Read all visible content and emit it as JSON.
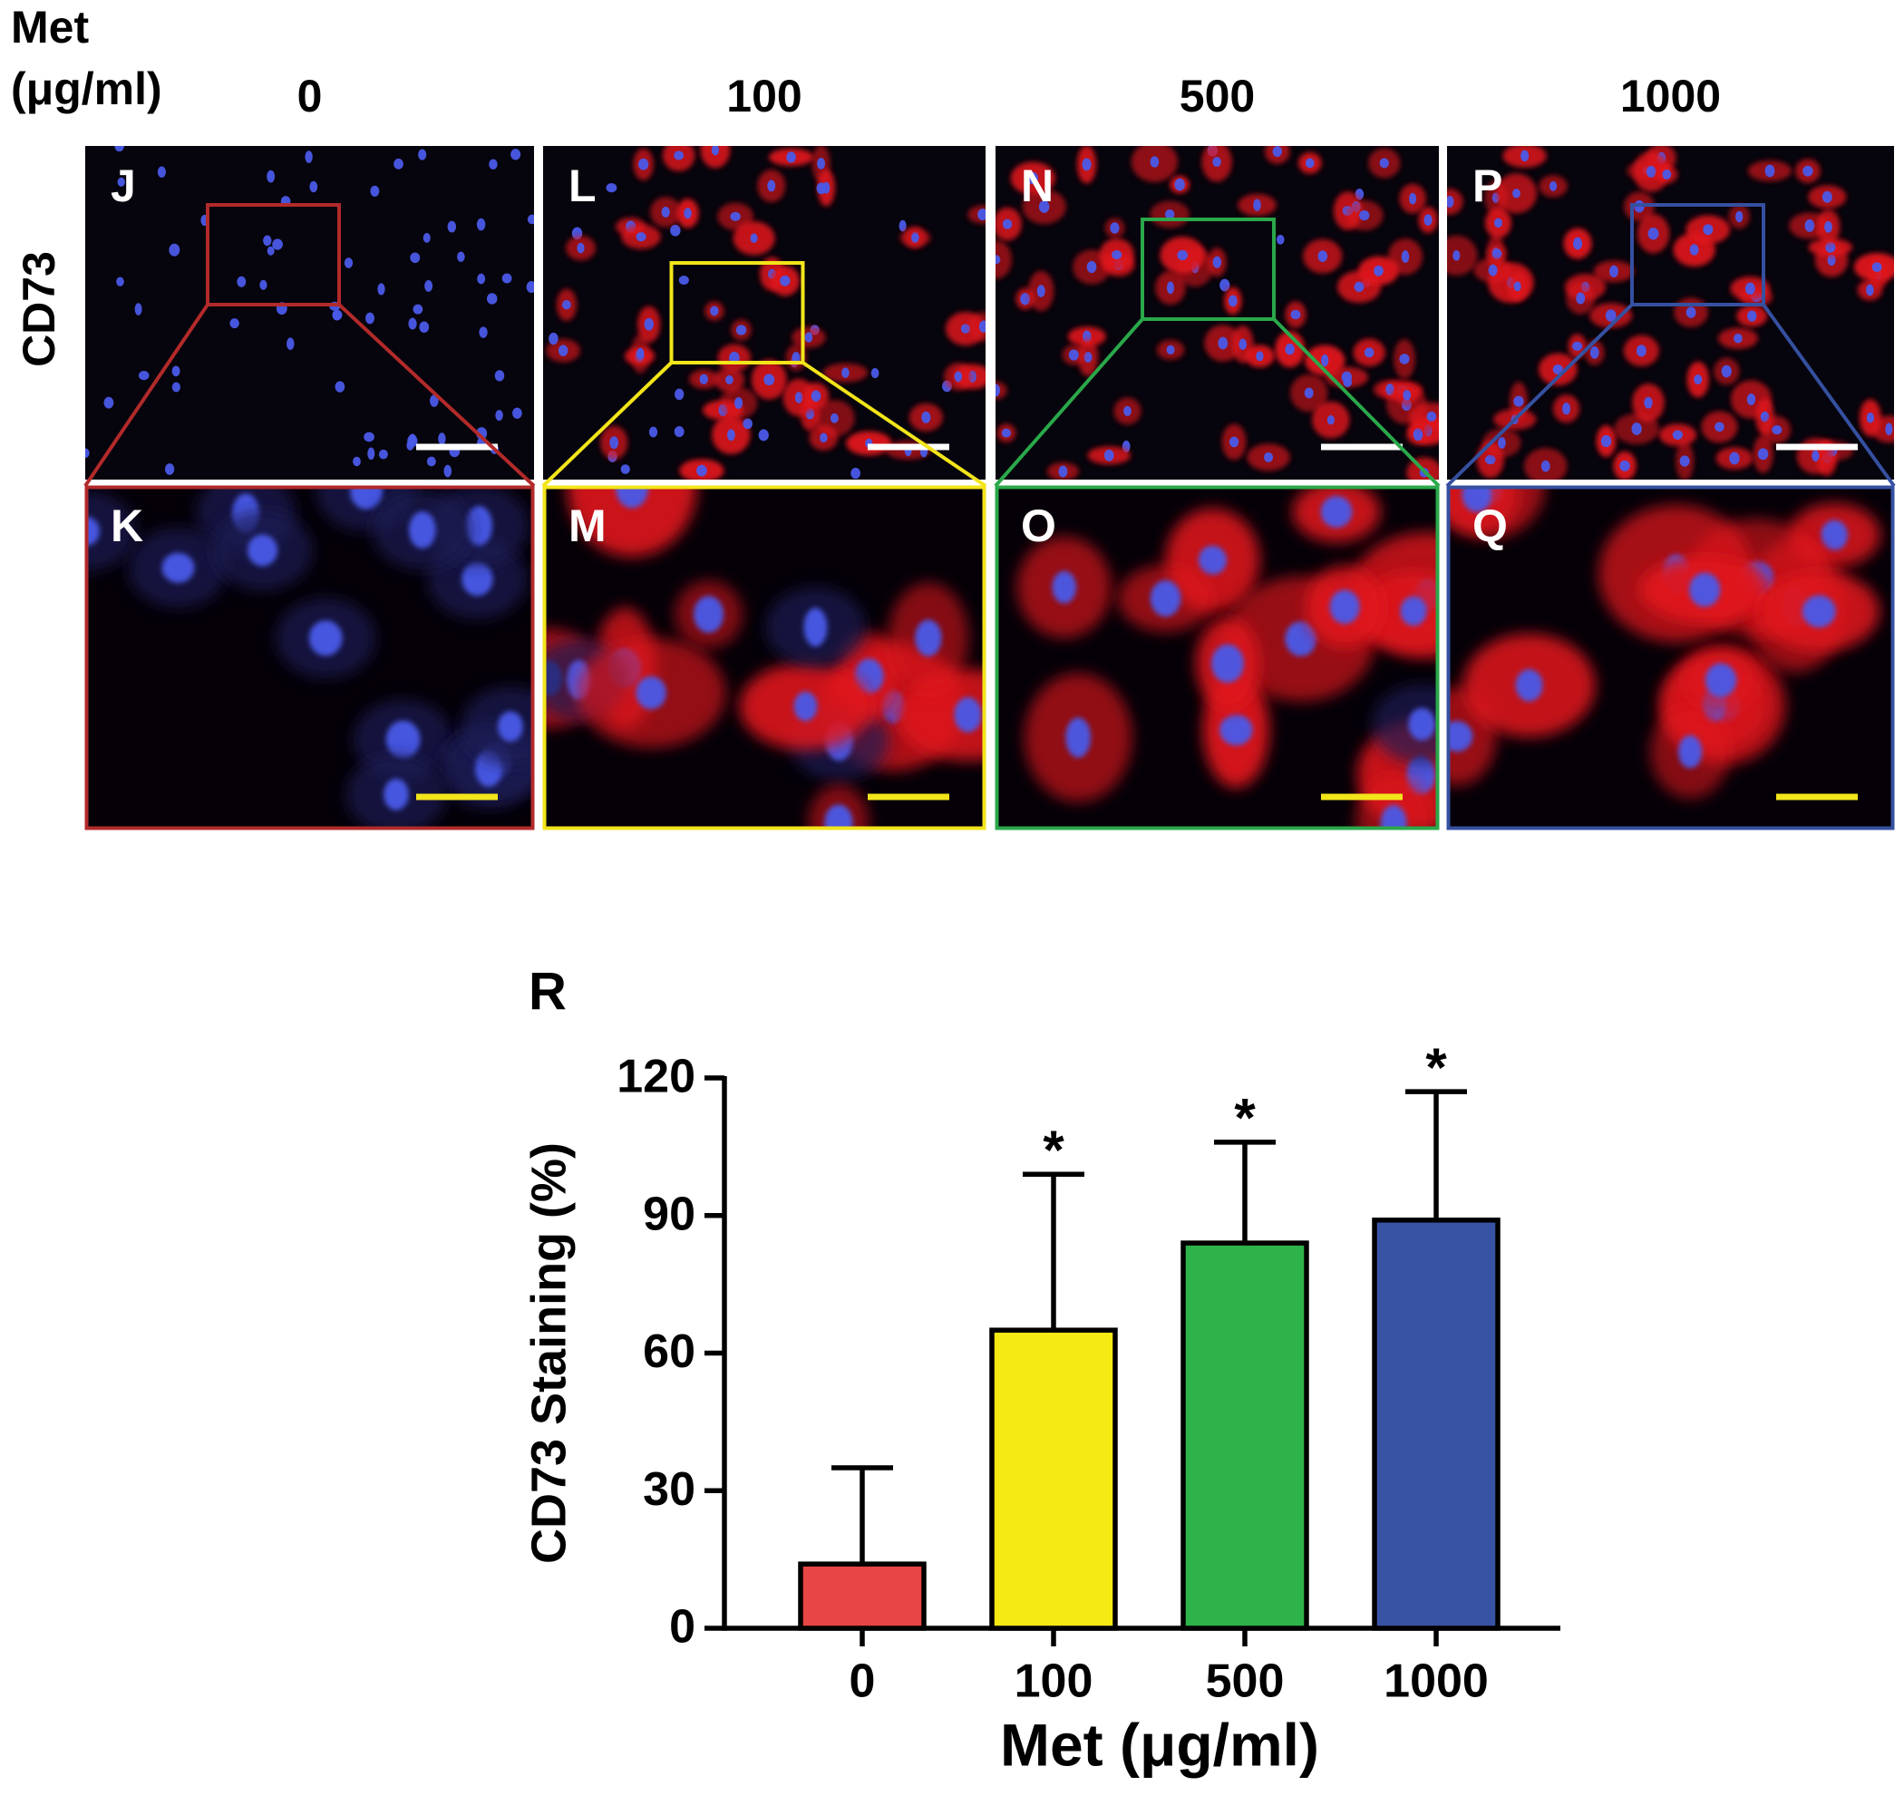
{
  "figure": {
    "dose_label_line1": "Met",
    "dose_label_line2": "(μg/ml)",
    "doses": [
      "0",
      "100",
      "500",
      "1000"
    ],
    "stain": "CD73",
    "panels_top": [
      "J",
      "L",
      "N",
      "P"
    ],
    "panels_bottom": [
      "K",
      "M",
      "O",
      "Q"
    ],
    "panel_colors": [
      "#b22a2a",
      "#f2e51a",
      "#2aa84a",
      "#3550a0"
    ]
  },
  "chart_data": {
    "type": "bar",
    "panel_label": "R",
    "categories": [
      "0",
      "100",
      "500",
      "1000"
    ],
    "values": [
      14,
      65,
      84,
      89
    ],
    "errors": [
      21,
      34,
      22,
      28
    ],
    "colors": [
      "#e84545",
      "#f5ea14",
      "#2db34a",
      "#3953a4"
    ],
    "annotations": [
      null,
      "*",
      "*",
      "*"
    ],
    "xlabel": "Met (μg/ml)",
    "ylabel": "CD73 Staining (%)",
    "ylim": [
      0,
      120
    ],
    "yticks": [
      0,
      30,
      60,
      90,
      120
    ]
  }
}
